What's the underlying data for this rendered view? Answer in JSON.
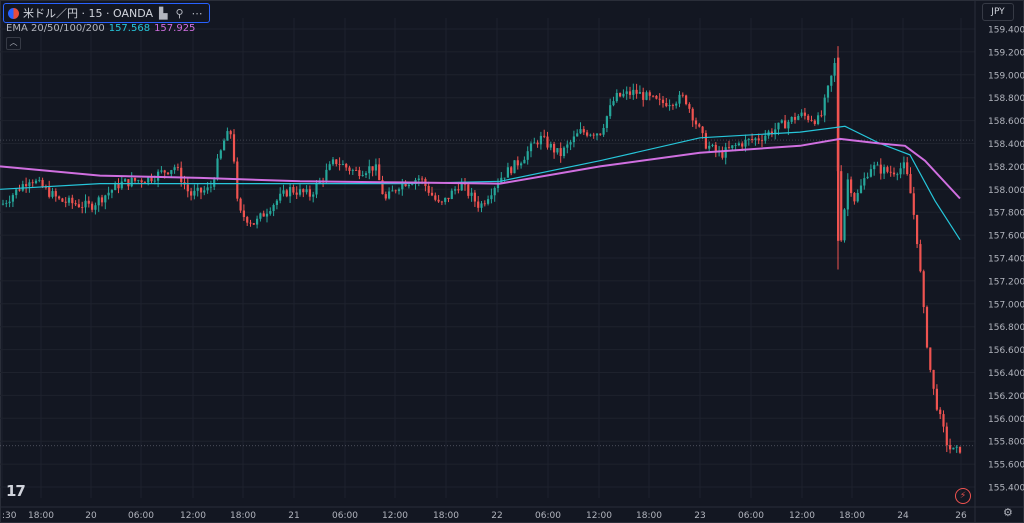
{
  "header": {
    "symbol_label": "米ドル／円 · 15 · OANDA",
    "ema_label": "EMA 20/50/100/200",
    "ema_value_1": "157.568",
    "ema_value_2": "157.925",
    "currency": "JPY"
  },
  "colors": {
    "background": "#131722",
    "up": "#26a69a",
    "down": "#ef5350",
    "ema_teal": "#26c6da",
    "ema_violet": "#d06fe0"
  },
  "chart_data": {
    "type": "candlestick",
    "ylim": [
      155.4,
      159.55
    ],
    "y_ticks": [
      "159.400",
      "159.200",
      "159.000",
      "158.800",
      "158.600",
      "158.400",
      "158.200",
      "158.000",
      "157.800",
      "157.600",
      "157.400",
      "157.200",
      "157.000",
      "156.800",
      "156.600",
      "156.400",
      "156.200",
      "156.000",
      "155.800",
      "155.600",
      "155.400"
    ],
    "x_ticks": [
      ":30",
      "18:00",
      "20",
      "06:00",
      "12:00",
      "18:00",
      "21",
      "06:00",
      "12:00",
      "18:00",
      "22",
      "06:00",
      "12:00",
      "18:00",
      "23",
      "06:00",
      "12:00",
      "18:00",
      "24",
      "26"
    ],
    "price_path": [
      [
        0,
        157.85
      ],
      [
        30,
        158.1
      ],
      [
        60,
        157.9
      ],
      [
        90,
        157.85
      ],
      [
        120,
        158.05
      ],
      [
        150,
        158.1
      ],
      [
        175,
        158.2
      ],
      [
        190,
        157.95
      ],
      [
        210,
        158.0
      ],
      [
        225,
        158.45
      ],
      [
        232,
        158.5
      ],
      [
        238,
        157.8
      ],
      [
        255,
        157.7
      ],
      [
        270,
        157.85
      ],
      [
        290,
        158.0
      ],
      [
        310,
        157.95
      ],
      [
        335,
        158.25
      ],
      [
        355,
        158.15
      ],
      [
        375,
        158.2
      ],
      [
        385,
        157.9
      ],
      [
        400,
        158.05
      ],
      [
        420,
        158.1
      ],
      [
        440,
        157.85
      ],
      [
        460,
        158.05
      ],
      [
        480,
        157.85
      ],
      [
        500,
        158.1
      ],
      [
        520,
        158.25
      ],
      [
        540,
        158.45
      ],
      [
        560,
        158.3
      ],
      [
        580,
        158.5
      ],
      [
        600,
        158.5
      ],
      [
        615,
        158.8
      ],
      [
        635,
        158.85
      ],
      [
        660,
        158.75
      ],
      [
        685,
        158.8
      ],
      [
        705,
        158.4
      ],
      [
        720,
        158.3
      ],
      [
        740,
        158.4
      ],
      [
        760,
        158.45
      ],
      [
        780,
        158.55
      ],
      [
        800,
        158.65
      ],
      [
        820,
        158.6
      ],
      [
        835,
        159.1
      ],
      [
        840,
        157.5
      ],
      [
        848,
        158.1
      ],
      [
        855,
        157.9
      ],
      [
        870,
        158.2
      ],
      [
        890,
        158.15
      ],
      [
        905,
        158.2
      ],
      [
        912,
        157.9
      ],
      [
        918,
        157.5
      ],
      [
        925,
        156.8
      ],
      [
        932,
        156.3
      ],
      [
        940,
        156.0
      ],
      [
        948,
        155.75
      ],
      [
        955,
        155.7
      ],
      [
        962,
        155.75
      ]
    ],
    "series": [
      {
        "values": [
          [
            0,
            158.0
          ],
          [
            100,
            158.05
          ],
          [
            200,
            158.05
          ],
          [
            300,
            158.05
          ],
          [
            400,
            158.05
          ],
          [
            500,
            158.07
          ],
          [
            600,
            158.25
          ],
          [
            700,
            158.45
          ],
          [
            800,
            158.5
          ],
          [
            845,
            158.55
          ],
          [
            880,
            158.4
          ],
          [
            910,
            158.3
          ],
          [
            935,
            157.9
          ],
          [
            960,
            157.56
          ]
        ]
      },
      {
        "values": [
          [
            0,
            158.2
          ],
          [
            100,
            158.12
          ],
          [
            200,
            158.1
          ],
          [
            300,
            158.07
          ],
          [
            400,
            158.06
          ],
          [
            500,
            158.05
          ],
          [
            600,
            158.2
          ],
          [
            700,
            158.32
          ],
          [
            800,
            158.38
          ],
          [
            840,
            158.44
          ],
          [
            880,
            158.4
          ],
          [
            905,
            158.38
          ],
          [
            925,
            158.25
          ],
          [
            960,
            157.92
          ]
        ]
      }
    ],
    "ref_lines": [
      158.43,
      155.76
    ]
  }
}
